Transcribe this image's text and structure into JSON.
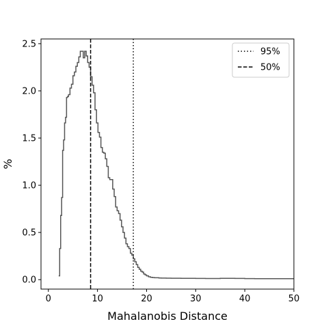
{
  "chart_data": {
    "type": "line",
    "title": "",
    "xlabel": "Mahalanobis Distance",
    "ylabel": "%",
    "xlim": [
      -1.5,
      50
    ],
    "ylim": [
      -0.1,
      2.55
    ],
    "xticks": [
      0,
      10,
      20,
      30,
      40,
      50
    ],
    "yticks": [
      0.0,
      0.5,
      1.0,
      1.5,
      2.0,
      2.5
    ],
    "xtick_labels": [
      "0",
      "10",
      "20",
      "30",
      "40",
      "50"
    ],
    "ytick_labels": [
      "0.0",
      "0.5",
      "1.0",
      "1.5",
      "2.0",
      "2.5"
    ],
    "grid": false,
    "legend_position": "upper right",
    "colors": {
      "series": "#555555",
      "reference": "#000000"
    },
    "series": [
      {
        "style": "step",
        "x": [
          2.1,
          2.3,
          2.5,
          2.7,
          2.9,
          3.1,
          3.3,
          3.5,
          3.7,
          3.9,
          4.1,
          4.4,
          4.7,
          5.0,
          5.3,
          5.6,
          5.9,
          6.2,
          6.5,
          6.8,
          7.1,
          7.4,
          7.7,
          8.0,
          8.3,
          8.6,
          8.9,
          9.2,
          9.5,
          9.8,
          10.1,
          10.4,
          10.7,
          11.0,
          11.3,
          11.6,
          11.9,
          12.2,
          12.5,
          12.8,
          13.1,
          13.4,
          13.7,
          14.0,
          14.3,
          14.6,
          14.9,
          15.2,
          15.5,
          15.8,
          16.1,
          16.4,
          16.7,
          17.0,
          17.3,
          17.6,
          17.9,
          18.2,
          18.5,
          18.8,
          19.1,
          19.4,
          19.7,
          20.0,
          20.4,
          20.8,
          21.2,
          21.6,
          22.0,
          22.5,
          23.0,
          24.0,
          25.0,
          27.0,
          30.0,
          32.0,
          35.0,
          38.0,
          40.0,
          42.0,
          45.0,
          50.0
        ],
        "y": [
          0.04,
          0.33,
          0.68,
          0.87,
          1.37,
          1.48,
          1.66,
          1.72,
          1.93,
          1.94,
          1.96,
          2.03,
          2.07,
          2.16,
          2.2,
          2.26,
          2.3,
          2.36,
          2.42,
          2.42,
          2.35,
          2.42,
          2.37,
          2.3,
          2.25,
          2.15,
          2.06,
          1.98,
          1.8,
          1.66,
          1.56,
          1.51,
          1.4,
          1.35,
          1.34,
          1.28,
          1.2,
          1.08,
          1.06,
          1.06,
          0.96,
          0.88,
          0.77,
          0.73,
          0.7,
          0.63,
          0.56,
          0.5,
          0.44,
          0.38,
          0.35,
          0.33,
          0.28,
          0.26,
          0.22,
          0.19,
          0.16,
          0.13,
          0.11,
          0.09,
          0.08,
          0.06,
          0.05,
          0.04,
          0.03,
          0.025,
          0.022,
          0.02,
          0.02,
          0.018,
          0.017,
          0.016,
          0.015,
          0.014,
          0.013,
          0.012,
          0.014,
          0.013,
          0.011,
          0.01,
          0.01,
          0.01
        ]
      }
    ],
    "reference_lines": [
      {
        "name": "95%",
        "x": 17.3,
        "style": "dotted"
      },
      {
        "name": "50%",
        "x": 8.6,
        "style": "dashed"
      }
    ]
  }
}
